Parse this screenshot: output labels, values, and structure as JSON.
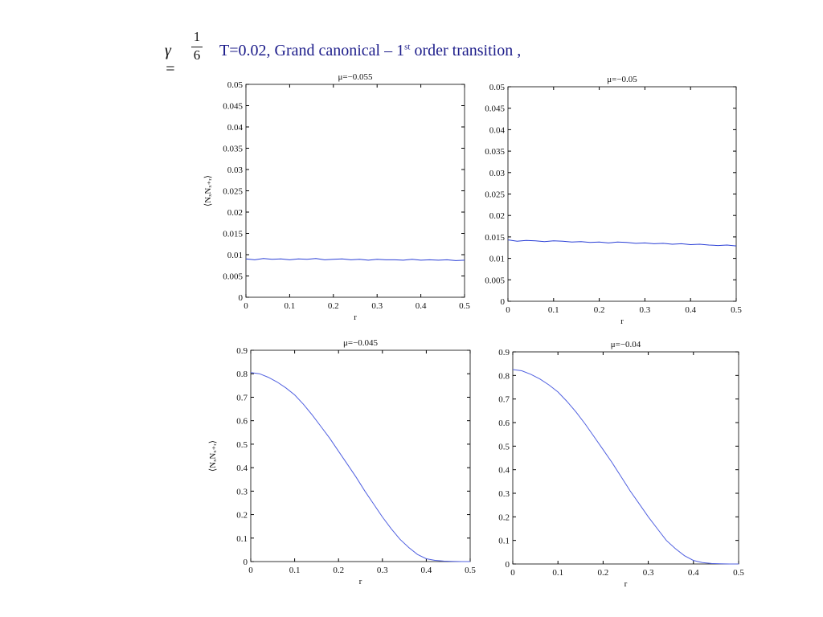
{
  "header": {
    "gamma": "γ =",
    "numerator": "1",
    "denominator": "6",
    "text": "T=0.02, Grand canonical – 1",
    "superscript": "st",
    "text_end": " order transition ,"
  },
  "chart_data": [
    {
      "type": "line",
      "title": "μ=−0.055",
      "xlabel": "r",
      "ylabel": "⟨NₓNₓ₊ᵣ⟩",
      "color": "#2a3fd6",
      "x": [
        0,
        0.02,
        0.04,
        0.06,
        0.08,
        0.1,
        0.12,
        0.14,
        0.16,
        0.18,
        0.2,
        0.22,
        0.24,
        0.26,
        0.28,
        0.3,
        0.32,
        0.34,
        0.36,
        0.38,
        0.4,
        0.42,
        0.44,
        0.46,
        0.48,
        0.5
      ],
      "values": [
        0.009,
        0.0088,
        0.0091,
        0.0089,
        0.009,
        0.0088,
        0.009,
        0.0089,
        0.0091,
        0.0088,
        0.0089,
        0.009,
        0.0088,
        0.0089,
        0.0087,
        0.0089,
        0.0088,
        0.0088,
        0.0087,
        0.0089,
        0.0087,
        0.0088,
        0.0087,
        0.0088,
        0.0086,
        0.0087
      ],
      "xlim": [
        0,
        0.5
      ],
      "xticks": [
        0,
        0.1,
        0.2,
        0.3,
        0.4,
        0.5
      ],
      "ylim": [
        0,
        0.05
      ],
      "yticks": [
        0,
        0.005,
        0.01,
        0.015,
        0.02,
        0.025,
        0.03,
        0.035,
        0.04,
        0.045,
        0.05
      ]
    },
    {
      "type": "line",
      "title": "μ=−0.05",
      "xlabel": "r",
      "color": "#2a3fd6",
      "x": [
        0,
        0.02,
        0.04,
        0.06,
        0.08,
        0.1,
        0.12,
        0.14,
        0.16,
        0.18,
        0.2,
        0.22,
        0.24,
        0.26,
        0.28,
        0.3,
        0.32,
        0.34,
        0.36,
        0.38,
        0.4,
        0.42,
        0.44,
        0.46,
        0.48,
        0.5
      ],
      "values": [
        0.0143,
        0.014,
        0.0142,
        0.0141,
        0.0139,
        0.0141,
        0.014,
        0.0138,
        0.0139,
        0.0137,
        0.0138,
        0.0136,
        0.0138,
        0.0137,
        0.0135,
        0.0136,
        0.0134,
        0.0135,
        0.0133,
        0.0134,
        0.0132,
        0.0133,
        0.0131,
        0.013,
        0.0131,
        0.0129
      ],
      "xlim": [
        0,
        0.5
      ],
      "xticks": [
        0,
        0.1,
        0.2,
        0.3,
        0.4,
        0.5
      ],
      "ylim": [
        0,
        0.05
      ],
      "yticks": [
        0,
        0.005,
        0.01,
        0.015,
        0.02,
        0.025,
        0.03,
        0.035,
        0.04,
        0.045,
        0.05
      ]
    },
    {
      "type": "line",
      "title": "μ=−0.045",
      "xlabel": "r",
      "ylabel": "⟨NₓNₓ₊ᵣ⟩",
      "color": "#5060e0",
      "x": [
        0,
        0.02,
        0.04,
        0.06,
        0.08,
        0.1,
        0.12,
        0.14,
        0.16,
        0.18,
        0.2,
        0.22,
        0.24,
        0.26,
        0.28,
        0.3,
        0.32,
        0.34,
        0.36,
        0.38,
        0.4,
        0.42,
        0.44,
        0.46,
        0.48,
        0.5
      ],
      "values": [
        0.805,
        0.8,
        0.785,
        0.765,
        0.74,
        0.71,
        0.67,
        0.625,
        0.575,
        0.525,
        0.47,
        0.415,
        0.36,
        0.3,
        0.245,
        0.19,
        0.14,
        0.095,
        0.06,
        0.03,
        0.012,
        0.005,
        0.002,
        0.001,
        0,
        0
      ],
      "xlim": [
        0,
        0.5
      ],
      "xticks": [
        0,
        0.1,
        0.2,
        0.3,
        0.4,
        0.5
      ],
      "ylim": [
        0,
        0.9
      ],
      "yticks": [
        0,
        0.1,
        0.2,
        0.3,
        0.4,
        0.5,
        0.6,
        0.7,
        0.8,
        0.9
      ]
    },
    {
      "type": "line",
      "title": "μ=−0.04",
      "xlabel": "r",
      "color": "#5060e0",
      "x": [
        0,
        0.02,
        0.04,
        0.06,
        0.08,
        0.1,
        0.12,
        0.14,
        0.16,
        0.18,
        0.2,
        0.22,
        0.24,
        0.26,
        0.28,
        0.3,
        0.32,
        0.34,
        0.36,
        0.38,
        0.4,
        0.42,
        0.44,
        0.46,
        0.48,
        0.5
      ],
      "values": [
        0.825,
        0.82,
        0.805,
        0.785,
        0.76,
        0.73,
        0.69,
        0.645,
        0.595,
        0.54,
        0.485,
        0.43,
        0.37,
        0.31,
        0.255,
        0.2,
        0.15,
        0.1,
        0.065,
        0.035,
        0.015,
        0.006,
        0.002,
        0.001,
        0,
        0
      ],
      "xlim": [
        0,
        0.5
      ],
      "xticks": [
        0,
        0.1,
        0.2,
        0.3,
        0.4,
        0.5
      ],
      "ylim": [
        0,
        0.9
      ],
      "yticks": [
        0,
        0.1,
        0.2,
        0.3,
        0.4,
        0.5,
        0.6,
        0.7,
        0.8,
        0.9
      ]
    }
  ]
}
